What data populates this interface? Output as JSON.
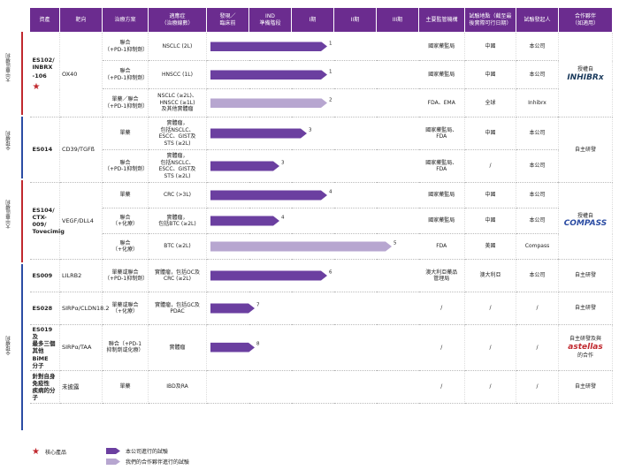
{
  "headers": [
    "資產",
    "靶向",
    "治療方案",
    "適應症\n（治療線數）",
    "發現／\n臨床前",
    "IND\n準備階段",
    "I期",
    "II期",
    "III期",
    "主要監管機構",
    "試驗地點（截至最\n後實際可行日期）",
    "試驗發起人",
    "合作夥伴\n（如適用）"
  ],
  "side_labels": [
    {
      "text": "大中華區權利",
      "color": "#c0282e"
    },
    {
      "text": "全球權利",
      "color": "#2b4ca3"
    },
    {
      "text": "大中華區權利",
      "color": "#c0282e"
    },
    {
      "text": "全球權利",
      "color": "#2b4ca3"
    }
  ],
  "groups": [
    {
      "asset": "ES102/\nINBRX\n-106",
      "star": true,
      "target": "OX40",
      "partner": "授權自",
      "partner_logo": "INHIBRx",
      "rows": [
        {
          "regimen": "聯合\n（+PD-1抑制劑）",
          "indication": "NSCLC (2L)",
          "fn": "1",
          "progress": 0.56,
          "style": "dark",
          "authority": "國家藥監局",
          "location": "中國",
          "sponsor": "本公司"
        },
        {
          "regimen": "聯合\n（+PD-1抑制劑）",
          "indication": "HNSCC (1L)",
          "fn": "1",
          "progress": 0.56,
          "style": "dark",
          "authority": "國家藥監局",
          "location": "中國",
          "sponsor": "本公司"
        },
        {
          "regimen": "單藥／聯合\n（+PD-1抑制劑）",
          "indication": "NSCLC (≥2L)、\nHNSCC (≥1L)\n及其他實體瘤",
          "fn": "2",
          "progress": 0.56,
          "style": "light",
          "authority": "FDA、EMA",
          "location": "全球",
          "sponsor": "Inhibrx"
        }
      ]
    },
    {
      "asset": "ES014",
      "star": false,
      "target": "CD39/TGFß",
      "partner": "自主研發",
      "partner_logo": "",
      "rows": [
        {
          "regimen": "單藥",
          "indication": "實體瘤，\n包括NSCLC、\nESCC、GIST及\nSTS (≥2L)",
          "fn": "3",
          "progress": 0.46,
          "style": "dark",
          "authority": "國家藥監局、\nFDA",
          "location": "中國",
          "sponsor": "本公司"
        },
        {
          "regimen": "聯合\n（+PD-1抑制劑）",
          "indication": "實體瘤，\n包括NSCLC、\nESCC、GIST及\nSTS (≥2L)",
          "fn": "3",
          "progress": 0.33,
          "style": "dark",
          "authority": "國家藥監局、\nFDA",
          "location": "/",
          "sponsor": "本公司"
        }
      ]
    },
    {
      "asset": "ES104/\nCTX-009/\nTovecimig",
      "star": false,
      "target": "VEGF/DLL4",
      "partner": "授權自",
      "partner_logo": "COMPASS",
      "rows": [
        {
          "regimen": "單藥",
          "indication": "CRC (>3L)",
          "fn": "4",
          "progress": 0.56,
          "style": "dark",
          "authority": "國家藥監局",
          "location": "中國",
          "sponsor": "本公司"
        },
        {
          "regimen": "聯合\n（+化療）",
          "indication": "實體瘤，\n包括BTC (≥2L)",
          "fn": "4",
          "progress": 0.33,
          "style": "dark",
          "authority": "國家藥監局",
          "location": "中國",
          "sponsor": "本公司"
        },
        {
          "regimen": "聯合\n（+化療）",
          "indication": "BTC (≥2L)",
          "fn": "5",
          "progress": 0.87,
          "style": "light",
          "authority": "FDA",
          "location": "美國",
          "sponsor": "Compass"
        }
      ]
    },
    {
      "asset": "ES009",
      "star": false,
      "target": "LILRB2",
      "partner": "自主研發",
      "partner_logo": "",
      "rows": [
        {
          "regimen": "單藥或聯合\n（+PD-1抑制劑）",
          "indication": "實體瘤，包括OC及\nCRC (≥2L)",
          "fn": "6",
          "progress": 0.56,
          "style": "dark",
          "authority": "澳大利亞藥品\n管理局",
          "location": "澳大利亞",
          "sponsor": "本公司"
        }
      ]
    },
    {
      "asset": "ES028",
      "star": false,
      "target": "SIRPα/CLDN18.2",
      "partner": "自主研發",
      "partner_logo": "",
      "rows": [
        {
          "regimen": "單藥或聯合\n（+化療）",
          "indication": "實體瘤，包括GC及\nPDAC",
          "fn": "7",
          "progress": 0.21,
          "style": "dark",
          "authority": "/",
          "location": "/",
          "sponsor": "/"
        }
      ]
    },
    {
      "asset": "ES019及\n最多三個\n其他BiME\n分子",
      "star": false,
      "target": "SIRPα/TAA",
      "partner": "自主研發及與",
      "partner_logo": "astellas",
      "partner_suffix": "的合作",
      "rows": [
        {
          "regimen": "聯合（+PD-1\n抑制劑或化療）",
          "indication": "實體瘤",
          "fn": "8",
          "progress": 0.21,
          "style": "dark",
          "authority": "/",
          "location": "/",
          "sponsor": "/"
        }
      ]
    },
    {
      "asset": "針對自身\n免疫性\n疾病的分子",
      "star": false,
      "target": "未披露",
      "partner": "自主研發",
      "partner_logo": "",
      "rows": [
        {
          "regimen": "單藥",
          "indication": "IBD及RA",
          "fn": "",
          "progress": 0,
          "style": "dark",
          "authority": "/",
          "location": "/",
          "sponsor": "/"
        }
      ]
    }
  ],
  "legend": {
    "star_label": "核心產品",
    "dark_label": "本公司進行的試驗",
    "light_label": "我們的合作夥伴進行的試驗"
  },
  "colors": {
    "header": "#6b2c8f",
    "dark_arrow": "#6b3fa0",
    "light_arrow": "#b7a6d0",
    "greater_china": "#c0282e",
    "global": "#2b4ca3"
  }
}
